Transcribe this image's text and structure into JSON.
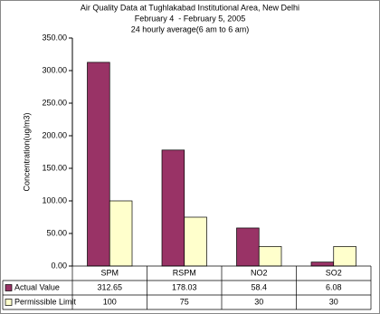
{
  "chart_data": {
    "type": "bar",
    "title": "Air Quality Data at Tughlakabad Institutional Area, New Delhi",
    "subtitle": [
      "February 4  - February 5, 2005",
      "24 hourly average(6 am to 6 am)"
    ],
    "y_label": "Concentration(ug/m3)",
    "categories": [
      "SPM",
      "RSPM",
      "NO2",
      "SO2"
    ],
    "series": [
      {
        "name": "Actual Value",
        "color": "#993366",
        "values": [
          312.65,
          178.03,
          58.4,
          6.08
        ]
      },
      {
        "name": "Permissible Limit",
        "color": "#ffffcc",
        "values": [
          100,
          75,
          30,
          30
        ]
      }
    ],
    "ylim": [
      0,
      350
    ],
    "yticks": [
      {
        "value": 0,
        "label": "0.00"
      },
      {
        "value": 50,
        "label": "50.00"
      },
      {
        "value": 100,
        "label": "100.00"
      },
      {
        "value": 150,
        "label": "150.00"
      },
      {
        "value": 200,
        "label": "200.00"
      },
      {
        "value": 250,
        "label": "250.00"
      },
      {
        "value": 300,
        "label": "300.00"
      },
      {
        "value": 350,
        "label": "350.00"
      }
    ],
    "grid": false
  }
}
